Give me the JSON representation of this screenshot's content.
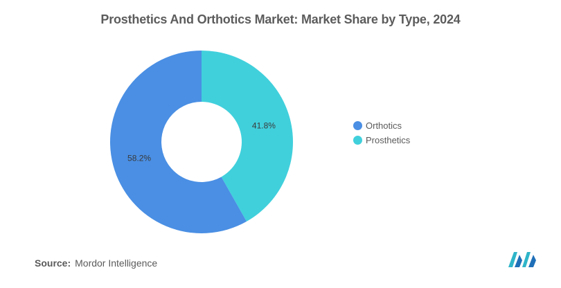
{
  "title": "Prosthetics And Orthotics Market: Market Share by Type, 2024",
  "source": {
    "label": "Source:",
    "text": "Mordor Intelligence"
  },
  "chart_data": {
    "type": "pie",
    "donut": true,
    "title": "Prosthetics And Orthotics Market: Market Share by Type, 2024",
    "categories": [
      "Orthotics",
      "Prosthetics"
    ],
    "values": [
      58.2,
      41.8
    ],
    "data_labels": [
      "58.2%",
      "41.8%"
    ],
    "colors": [
      "#4a8fe4",
      "#40d0dc"
    ],
    "legend_position": "right"
  }
}
